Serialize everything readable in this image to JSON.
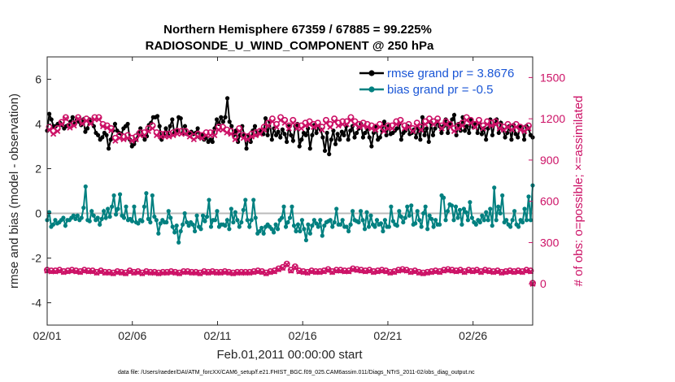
{
  "chart_data": {
    "type": "line",
    "title": "Northern Hemisphere 67359 / 67885 = 99.225%",
    "subtitle": "RADIOSONDE_U_WIND_COMPONENT @ 250 hPa",
    "xlabel": "Feb.01,2011 00:00:00 start",
    "ylabel_left": "rmse and bias (model - observation)",
    "ylabel_right": "# of obs: o=possible; ×=assimilated",
    "footnote": "data file: /Users/raeder/DAI/ATM_forcXX/CAM6_setup/f.e21.FHIST_BGC.f09_025.CAM6assim.011/Diags_NTrS_2011-02/obs_diag_output.nc",
    "x_range_days": [
      0,
      28.5
    ],
    "ylim_left": [
      -5,
      7
    ],
    "ylim_right": [
      -300,
      1650
    ],
    "x_ticks": [
      {
        "label": "02/01",
        "day": 0
      },
      {
        "label": "02/06",
        "day": 5
      },
      {
        "label": "02/11",
        "day": 10
      },
      {
        "label": "02/16",
        "day": 15
      },
      {
        "label": "02/21",
        "day": 20
      },
      {
        "label": "02/26",
        "day": 25
      }
    ],
    "y_ticks_left": [
      -4,
      -2,
      0,
      2,
      4,
      6
    ],
    "y_ticks_left_labels": [
      "-4",
      "-2",
      "0",
      "2",
      "4",
      "6"
    ],
    "y_ticks_right": [
      0,
      300,
      600,
      900,
      1200,
      1500
    ],
    "y_ticks_right_labels": [
      "0",
      "300",
      "600",
      "900",
      "1200",
      "1500"
    ],
    "zero_line": 0,
    "legend": {
      "position": "top-right",
      "entries": [
        {
          "label": "rmse grand pr = 3.8676",
          "color": "#000000"
        },
        {
          "label": "bias grand pr = -0.5",
          "color": "#008080"
        }
      ]
    },
    "series": [
      {
        "name": "rmse",
        "axis": "left",
        "color": "#000000",
        "values": [
          3.7,
          4.45,
          4.2,
          3.9,
          3.9,
          4.0,
          4.05,
          3.95,
          3.8,
          3.9,
          3.95,
          4.1,
          4.3,
          4.0,
          4.2,
          4.1,
          3.95,
          4.2,
          3.65,
          3.8,
          4.2,
          4.05,
          3.9,
          3.6,
          3.5,
          3.3,
          3.4,
          3.6,
          3.5,
          2.9,
          3.3,
          3.7,
          4.0,
          3.7,
          3.6,
          3.55,
          3.8,
          3.9,
          4.0,
          3.3,
          3.0,
          3.1,
          3.3,
          3.6,
          3.8,
          3.5,
          3.3,
          3.45,
          3.95,
          4.05,
          4.3,
          4.3,
          4.35,
          3.9,
          3.3,
          3.5,
          3.8,
          3.5,
          3.9,
          4.2,
          3.6,
          3.7,
          4.3,
          4.25,
          3.6,
          3.9,
          3.55,
          3.6,
          3.65,
          3.55,
          3.6,
          3.8,
          3.4,
          3.5,
          3.3,
          3.4,
          3.2,
          3.3,
          3.2,
          3.8,
          4.2,
          4.0,
          4.3,
          4.1,
          4.3,
          5.15,
          4.1,
          3.9,
          3.5,
          3.7,
          3.2,
          3.5,
          3.9,
          3.5,
          2.9,
          3.5,
          3.2,
          3.7,
          3.9,
          3.5,
          3.6,
          3.7,
          3.55,
          4.25,
          3.5,
          4.1,
          3.3,
          3.8,
          3.5,
          3.65,
          3.4,
          3.75,
          3.55,
          3.2,
          3.9,
          3.5,
          3.25,
          3.9,
          4.0,
          3.0,
          3.3,
          3.6,
          3.5,
          3.8,
          2.9,
          3.5,
          3.95,
          3.6,
          3.9,
          3.75,
          3.4,
          2.8,
          3.6,
          2.65,
          3.3,
          3.7,
          3.1,
          3.55,
          3.3,
          3.65,
          3.5,
          3.9,
          3.3,
          3.7,
          3.9,
          3.4,
          3.6,
          3.8,
          4.0,
          3.4,
          3.6,
          3.8,
          3.4,
          3.0,
          3.6,
          3.9,
          3.3,
          3.4,
          3.7,
          4.1,
          3.5,
          3.9,
          3.55,
          3.6,
          3.7,
          3.8,
          4.0,
          3.3,
          3.6,
          3.7,
          3.9,
          3.55,
          3.6,
          3.75,
          3.4,
          3.8,
          3.3,
          4.3,
          3.5,
          3.8,
          3.2,
          4.05,
          3.5,
          3.8,
          4.1,
          3.9,
          3.6,
          3.9,
          4.2,
          3.6,
          4.0,
          4.2,
          4.4,
          3.5,
          4.0,
          3.7,
          4.3,
          3.7,
          3.9,
          3.6,
          4.2,
          3.85,
          4.0,
          3.6,
          4.0,
          3.55,
          3.8,
          3.3,
          3.8,
          4.2,
          3.5,
          4.0,
          4.2,
          3.6,
          4.05,
          3.75,
          3.4,
          3.6,
          3.9,
          3.3,
          3.95,
          3.55,
          3.4,
          3.9,
          3.8,
          3.3,
          3.9,
          3.8,
          3.5,
          3.4
        ]
      },
      {
        "name": "bias",
        "axis": "left",
        "color": "#008080",
        "values": [
          -0.3,
          0.05,
          -0.6,
          -0.5,
          -0.3,
          -0.45,
          -0.4,
          -0.3,
          -0.2,
          -0.55,
          -0.3,
          -0.3,
          -0.2,
          -0.1,
          -0.25,
          -0.1,
          -0.3,
          -0.2,
          0.25,
          1.2,
          -0.3,
          -0.35,
          0.1,
          -0.1,
          -0.3,
          -0.2,
          -0.5,
          -0.25,
          0.1,
          -0.2,
          0.2,
          -0.15,
          0.3,
          0.8,
          -0.05,
          0.2,
          0.85,
          -0.1,
          -0.2,
          0.3,
          -0.3,
          -0.25,
          -0.35,
          0.3,
          -0.4,
          -0.45,
          -0.3,
          -0.35,
          0.3,
          0.9,
          -0.25,
          -0.4,
          0.8,
          -0.15,
          -0.3,
          -0.9,
          -0.45,
          -0.3,
          -0.4,
          -0.4,
          0.1,
          -0.2,
          -0.6,
          -0.85,
          -0.55,
          -1.3,
          -0.8,
          -0.5,
          0.0,
          -0.4,
          -0.55,
          -0.4,
          -0.5,
          -0.8,
          -0.1,
          -0.6,
          -0.7,
          -0.1,
          -0.35,
          -0.15,
          0.6,
          -0.6,
          -0.3,
          -0.3,
          0.1,
          -0.6,
          -0.5,
          -0.5,
          -0.55,
          -0.3,
          -0.7,
          0.2,
          -0.4,
          0.05,
          -0.3,
          -0.6,
          -0.4,
          0.15,
          0.6,
          -0.3,
          -0.6,
          -0.3,
          0.6,
          -0.2,
          -0.9,
          -0.8,
          -0.65,
          -0.9,
          -0.6,
          -0.5,
          -0.6,
          -0.7,
          -0.85,
          -0.5,
          -0.7,
          -0.3,
          -0.2,
          0.3,
          -0.6,
          -0.4,
          -0.2,
          0.3,
          -0.55,
          -0.8,
          -0.5,
          -0.8,
          -0.3,
          -0.7,
          -1.2,
          -0.5,
          -0.9,
          -0.55,
          -0.3,
          -0.45,
          -0.6,
          -0.3,
          -1.0,
          -0.55,
          -0.4,
          -0.35,
          -0.3,
          -0.6,
          -0.4,
          0.2,
          -0.5,
          -0.5,
          -0.3,
          -0.6,
          -0.6,
          -0.8,
          -0.5,
          0.1,
          -0.3,
          -0.35,
          -0.4,
          0.1,
          -0.3,
          -0.7,
          0.05,
          -0.6,
          -0.1,
          -0.5,
          -0.6,
          -0.3,
          -0.5,
          -0.45,
          -0.8,
          -0.3,
          -0.6,
          -0.6,
          0.3,
          -0.35,
          -0.5,
          -0.55,
          0.1,
          -0.15,
          -0.4,
          -0.2,
          0.3,
          -0.1,
          0.35,
          -0.5,
          -0.45,
          0.1,
          -0.3,
          -0.6,
          0.0,
          0.3,
          -0.7,
          -0.1,
          -0.25,
          -0.6,
          -0.3,
          -0.5,
          -0.5,
          0.8,
          0.7,
          -0.3,
          0.1,
          0.4,
          0.35,
          -0.3,
          0.3,
          -0.2,
          0.15,
          -0.5,
          0.2,
          0.05,
          -0.3,
          0.5,
          -0.2,
          -0.4,
          -0.5,
          -0.3,
          -0.4,
          -0.1,
          -0.3,
          0.05,
          -0.3,
          0.2,
          -0.55,
          1.15,
          -0.3,
          0.3,
          0.0,
          0.8,
          -0.4,
          -0.3,
          -0.5,
          -0.6,
          -0.3,
          0.1,
          -0.5,
          -0.6,
          -0.3,
          -0.4,
          0.2,
          -0.3,
          0.75,
          -0.3,
          1.25
        ]
      },
      {
        "name": "possible",
        "axis": "right",
        "color": "#cc1166",
        "values": [
          100,
          1140,
          95,
          1110,
          95,
          1130,
          100,
          1175,
          90,
          1210,
          95,
          1150,
          100,
          1165,
          95,
          1210,
          90,
          1180,
          100,
          1200,
          95,
          1180,
          95,
          1210,
          85,
          1210,
          95,
          1160,
          85,
          1150,
          85,
          1130,
          80,
          1060,
          90,
          1080,
          85,
          1070,
          80,
          1080,
          95,
          1060,
          85,
          1070,
          90,
          1100,
          80,
          1100,
          90,
          1130,
          85,
          1150,
          85,
          1100,
          80,
          1090,
          85,
          1090,
          85,
          1090,
          90,
          1100,
          85,
          1110,
          80,
          1110,
          90,
          1110,
          90,
          1090,
          85,
          1070,
          85,
          1090,
          80,
          1080,
          90,
          1100,
          85,
          1100,
          90,
          1100,
          85,
          1140,
          85,
          1140,
          90,
          1120,
          85,
          1110,
          80,
          1070,
          85,
          1130,
          85,
          1080,
          85,
          1070,
          85,
          1090,
          90,
          1100,
          95,
          1110,
          90,
          1140,
          80,
          1170,
          90,
          1200,
          95,
          1160,
          110,
          1210,
          120,
          1190,
          145,
          1150,
          100,
          1190,
          125,
          1150,
          95,
          1150,
          90,
          1170,
          85,
          1180,
          95,
          1160,
          90,
          1170,
          90,
          1140,
          95,
          1190,
          105,
          1160,
          90,
          1200,
          100,
          1170,
          100,
          1180,
          95,
          1180,
          95,
          1210,
          110,
          1180,
          105,
          1160,
          100,
          1170,
          95,
          1160,
          100,
          1150,
          90,
          1140,
          95,
          1160,
          100,
          1130,
          95,
          1150,
          85,
          1150,
          90,
          1180,
          100,
          1190,
          105,
          1150,
          100,
          1160,
          90,
          1130,
          95,
          1170,
          85,
          1140,
          80,
          1180,
          85,
          1200,
          90,
          1180,
          95,
          1200,
          90,
          1150,
          100,
          1180,
          105,
          1160,
          100,
          1130,
          95,
          1150,
          100,
          1170,
          90,
          1210,
          100,
          1190,
          95,
          1160,
          100,
          1190,
          90,
          1150,
          100,
          1180,
          95,
          1170,
          90,
          1180,
          95,
          1150,
          85,
          1140,
          90,
          1160,
          95,
          1140,
          90,
          1160,
          95,
          1140,
          90,
          1130,
          100,
          1150,
          95,
          5
        ]
      },
      {
        "name": "assimilated",
        "axis": "right",
        "color": "#cc1166",
        "values": [
          95,
          1120,
          90,
          1090,
          90,
          1110,
          95,
          1160,
          85,
          1200,
          90,
          1135,
          95,
          1150,
          90,
          1200,
          85,
          1165,
          95,
          1185,
          90,
          1165,
          90,
          1195,
          80,
          1195,
          90,
          1145,
          80,
          1135,
          80,
          1115,
          75,
          1040,
          85,
          1060,
          80,
          1050,
          75,
          1060,
          90,
          1040,
          80,
          1050,
          85,
          1080,
          75,
          1080,
          85,
          1110,
          80,
          1130,
          80,
          1080,
          75,
          1070,
          80,
          1070,
          80,
          1070,
          85,
          1080,
          80,
          1090,
          75,
          1090,
          85,
          1090,
          85,
          1070,
          80,
          1050,
          80,
          1070,
          75,
          1060,
          85,
          1080,
          80,
          1080,
          85,
          1080,
          80,
          1120,
          80,
          1120,
          85,
          1100,
          80,
          1090,
          75,
          1050,
          80,
          1110,
          80,
          1060,
          80,
          1050,
          80,
          1070,
          85,
          1080,
          90,
          1090,
          85,
          1120,
          75,
          1150,
          85,
          1180,
          90,
          1140,
          105,
          1190,
          115,
          1170,
          140,
          1130,
          95,
          1170,
          120,
          1130,
          90,
          1130,
          85,
          1150,
          80,
          1160,
          90,
          1140,
          85,
          1150,
          85,
          1120,
          90,
          1170,
          100,
          1140,
          85,
          1180,
          95,
          1150,
          95,
          1160,
          90,
          1160,
          90,
          1190,
          105,
          1160,
          100,
          1140,
          95,
          1150,
          90,
          1140,
          95,
          1130,
          85,
          1120,
          90,
          1140,
          95,
          1110,
          90,
          1130,
          80,
          1130,
          85,
          1160,
          95,
          1170,
          100,
          1130,
          95,
          1140,
          85,
          1110,
          90,
          1150,
          80,
          1120,
          75,
          1160,
          80,
          1180,
          85,
          1160,
          90,
          1180,
          85,
          1130,
          95,
          1160,
          100,
          1140,
          95,
          1110,
          90,
          1130,
          95,
          1150,
          85,
          1190,
          95,
          1170,
          90,
          1140,
          95,
          1170,
          85,
          1130,
          95,
          1160,
          90,
          1150,
          85,
          1160,
          90,
          1130,
          80,
          1120,
          85,
          1140,
          90,
          1120,
          85,
          1140,
          90,
          1120,
          85,
          1110,
          95,
          1130,
          90,
          0
        ]
      }
    ]
  }
}
